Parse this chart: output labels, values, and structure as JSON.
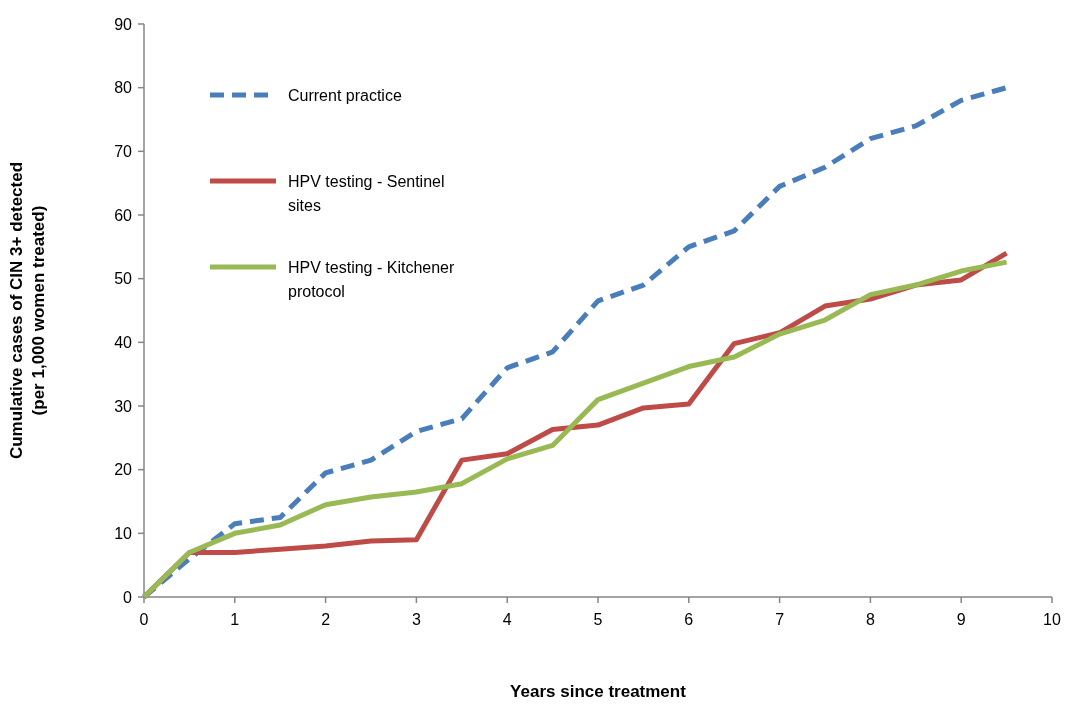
{
  "chart_data": {
    "type": "line",
    "xlabel": "Years since treatment",
    "ylabel": "Cumulative cases  of CIN 3+ detected\n(per 1,000 women treated)",
    "x": [
      0,
      0.5,
      1,
      1.5,
      2,
      2.5,
      3,
      3.5,
      4,
      4.5,
      5,
      5.5,
      6,
      6.5,
      7,
      7.5,
      8,
      8.5,
      9,
      9.5
    ],
    "series": [
      {
        "name": "Current practice",
        "color": "#4a7ebb",
        "line_style": "dashed",
        "values": [
          0,
          6,
          11.5,
          12.5,
          19.5,
          21.5,
          26,
          28,
          36,
          38.5,
          46.5,
          49,
          55,
          57.5,
          64.5,
          67.5,
          72,
          74,
          78,
          80
        ]
      },
      {
        "name": "HPV testing - Sentinel sites",
        "color": "#be4b48",
        "line_style": "solid",
        "values": [
          0,
          7,
          7,
          7.5,
          8,
          8.8,
          9,
          21.5,
          22.5,
          26.3,
          27,
          29.7,
          30.3,
          39.8,
          41.5,
          45.7,
          46.8,
          49,
          49.8,
          54
        ]
      },
      {
        "name": "HPV testing - Kitchener protocol",
        "color": "#98b954",
        "line_style": "solid",
        "values": [
          0,
          7,
          10,
          11.3,
          14.5,
          15.7,
          16.5,
          17.8,
          21.7,
          23.8,
          31,
          33.6,
          36.2,
          37.7,
          41.3,
          43.5,
          47.5,
          49,
          51.2,
          52.6
        ]
      }
    ],
    "xlim": [
      0,
      10
    ],
    "xticks": [
      0,
      1,
      2,
      3,
      4,
      5,
      6,
      7,
      8,
      9,
      10
    ],
    "ylim": [
      0,
      90
    ],
    "yticks": [
      0,
      10,
      20,
      30,
      40,
      50,
      60,
      70,
      80,
      90
    ],
    "grid": false,
    "legend": "top left",
    "marker": "none"
  }
}
